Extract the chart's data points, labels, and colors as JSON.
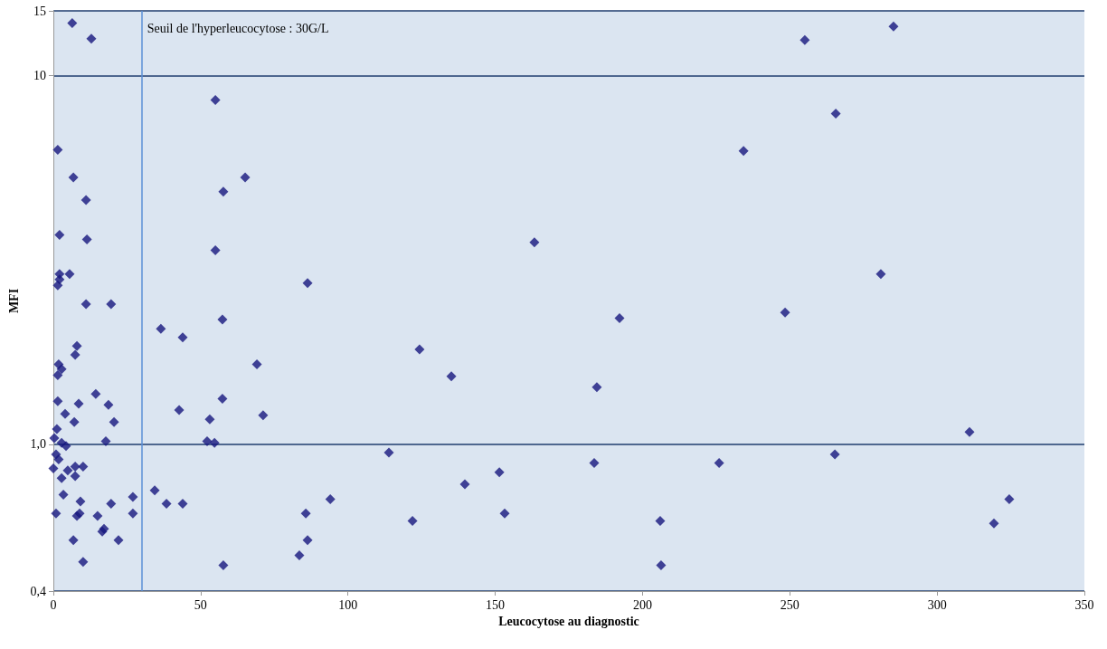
{
  "chart_data": {
    "type": "scatter",
    "xlabel": "Leucocytose au diagnostic",
    "ylabel": "MFI",
    "x": [
      6.4,
      12.9,
      1.5,
      6.8,
      11.1,
      2.1,
      11.4,
      5.5,
      2.1,
      1.5,
      2.1,
      11.1,
      19.6,
      8.0,
      7.4,
      1.8,
      2.8,
      1.5,
      14.4,
      1.5,
      8.6,
      18.7,
      4.0,
      7.1,
      20.6,
      1.2,
      0.3,
      2.8,
      4.3,
      17.8,
      0.9,
      1.8,
      0,
      4.9,
      7.4,
      10.1,
      7.4,
      2.8,
      3.4,
      9.2,
      19.6,
      27.0,
      0.9,
      8.9,
      8.0,
      15.0,
      27.0,
      16.6,
      17.2,
      6.8,
      22.1,
      10.1,
      36.5,
      43.9,
      57.4,
      69.1,
      57.4,
      42.7,
      53.1,
      71.2,
      52.2,
      54.7,
      34.4,
      38.4,
      43.9,
      57.7,
      55.0,
      65.1,
      57.7,
      55.0,
      86.3,
      163.3,
      124.3,
      192.2,
      135.1,
      184.5,
      113.9,
      183.6,
      151.4,
      139.7,
      94.0,
      85.7,
      121.9,
      153.2,
      206.0,
      86.3,
      83.5,
      206.3,
      255.1,
      285.2,
      265.6,
      234.3,
      280.9,
      248.4,
      311.0,
      226.0,
      265.3,
      324.5,
      319.3
    ],
    "values": [
      13.9,
      12.6,
      6.3,
      5.3,
      4.6,
      3.7,
      3.6,
      2.9,
      2.9,
      2.7,
      2.8,
      2.4,
      2.4,
      1.85,
      1.75,
      1.65,
      1.6,
      1.54,
      1.37,
      1.31,
      1.29,
      1.28,
      1.21,
      1.15,
      1.15,
      1.1,
      1.04,
      1.01,
      0.99,
      1.02,
      0.94,
      0.91,
      0.86,
      0.85,
      0.87,
      0.87,
      0.82,
      0.81,
      0.73,
      0.7,
      0.69,
      0.72,
      0.65,
      0.65,
      0.64,
      0.64,
      0.65,
      0.58,
      0.59,
      0.55,
      0.55,
      0.48,
      2.06,
      1.95,
      2.18,
      1.65,
      1.33,
      1.24,
      1.17,
      1.2,
      1.02,
      1.01,
      0.75,
      0.69,
      0.69,
      0.47,
      8.6,
      5.3,
      4.85,
      3.36,
      2.74,
      3.53,
      1.81,
      2.2,
      1.53,
      1.43,
      0.95,
      0.89,
      0.84,
      0.78,
      0.71,
      0.65,
      0.62,
      0.65,
      0.62,
      0.55,
      0.5,
      0.47,
      12.5,
      13.6,
      7.9,
      6.25,
      2.9,
      2.28,
      1.08,
      0.89,
      0.94,
      0.71,
      0.61
    ],
    "color": "#16167e",
    "marker": "diamond",
    "log": "y",
    "xlim": [
      0,
      350
    ],
    "xticks": [
      0,
      50,
      100,
      150,
      200,
      250,
      300,
      350
    ],
    "ylim": [
      0.4,
      15
    ],
    "yticks": [
      {
        "value": 0.4,
        "label": "0,4"
      },
      {
        "value": 1,
        "label": "1,0"
      },
      10,
      15
    ],
    "grid": "y",
    "ref_lines": [
      {
        "axis": "x",
        "value": 30,
        "label": "Seuil de l'hyperleucocytose : 30G/L",
        "color": "#5b8fd6"
      }
    ]
  }
}
